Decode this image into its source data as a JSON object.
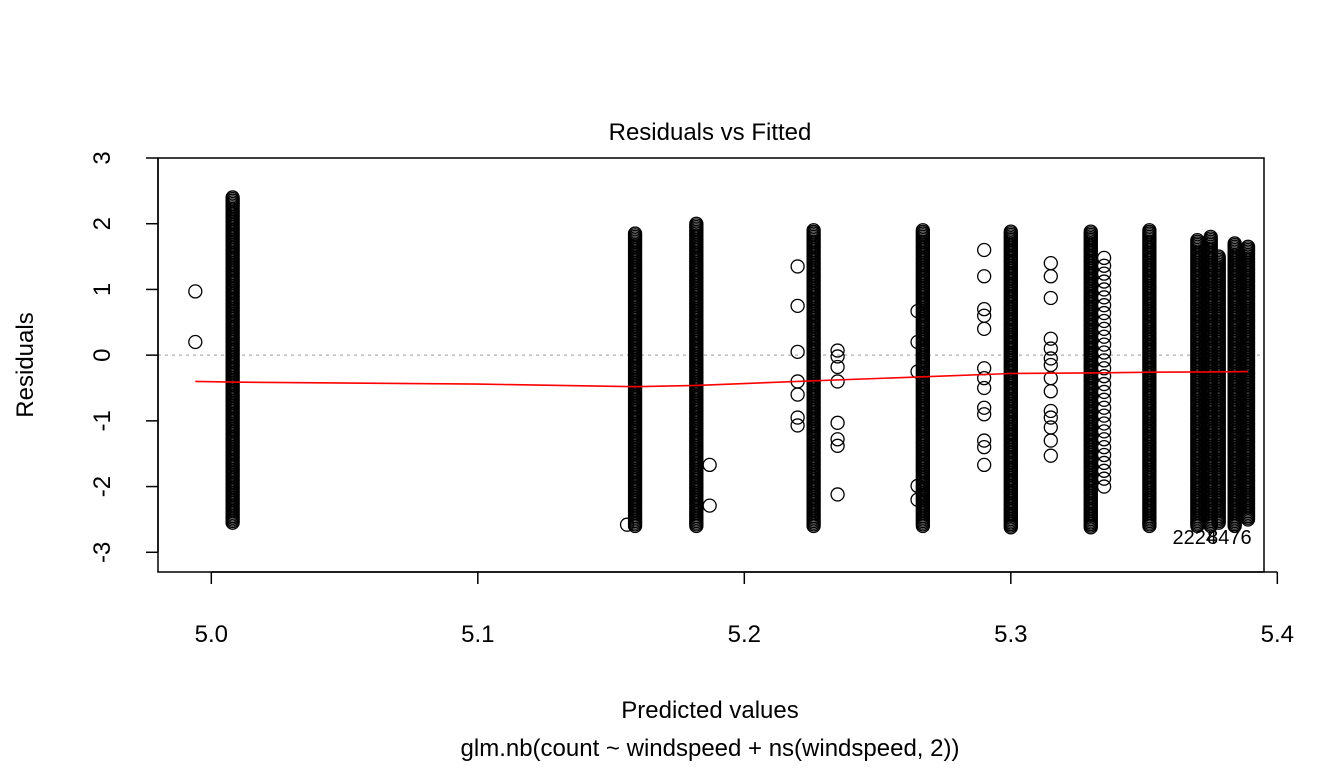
{
  "chart_data": {
    "type": "scatter",
    "title": "Residuals vs Fitted",
    "xlabel": "Predicted values",
    "subtitle": "glm.nb(count ~ windspeed + ns(windspeed, 2))",
    "ylabel": "Residuals",
    "xlim": [
      4.98,
      5.395
    ],
    "ylim": [
      -3.3,
      3.0
    ],
    "xticks": [
      "5.0",
      "5.1",
      "5.2",
      "5.3",
      "5.4"
    ],
    "yticks": [
      "-3",
      "-2",
      "-1",
      "0",
      "1",
      "2",
      "3"
    ],
    "reference_line": {
      "y": 0,
      "style": "dotted",
      "color": "#bbbbbb"
    },
    "point_style": {
      "shape": "open-circle",
      "color": "#000000"
    },
    "columns": [
      {
        "x": 5.008,
        "ymin": -2.55,
        "ymax": 2.4,
        "dense": true
      },
      {
        "x": 5.159,
        "ymin": -2.6,
        "ymax": 1.85,
        "dense": true
      },
      {
        "x": 5.182,
        "ymin": -2.6,
        "ymax": 2.0,
        "dense": true
      },
      {
        "x": 5.226,
        "ymin": -2.6,
        "ymax": 1.9,
        "dense": true
      },
      {
        "x": 5.267,
        "ymin": -2.6,
        "ymax": 1.9,
        "dense": true
      },
      {
        "x": 5.3,
        "ymin": -2.62,
        "ymax": 1.9,
        "dense": true
      },
      {
        "x": 5.33,
        "ymin": -2.62,
        "ymax": 1.9,
        "dense": true
      },
      {
        "x": 5.335,
        "ymin": -2.0,
        "ymax": 1.5,
        "dense": false
      },
      {
        "x": 5.352,
        "ymin": -2.6,
        "ymax": 1.9,
        "dense": true
      },
      {
        "x": 5.37,
        "ymin": -2.6,
        "ymax": 1.75,
        "dense": true
      },
      {
        "x": 5.375,
        "ymin": -2.6,
        "ymax": 1.8,
        "dense": true
      },
      {
        "x": 5.378,
        "ymin": -2.55,
        "ymax": 1.5,
        "dense": true
      },
      {
        "x": 5.384,
        "ymin": -2.6,
        "ymax": 1.7,
        "dense": true
      },
      {
        "x": 5.389,
        "ymin": -2.5,
        "ymax": 1.65,
        "dense": true
      }
    ],
    "scatter_points": [
      [
        4.994,
        0.97
      ],
      [
        4.994,
        0.2
      ],
      [
        5.156,
        -2.58
      ],
      [
        5.187,
        -1.67
      ],
      [
        5.187,
        -2.29
      ],
      [
        5.22,
        1.35
      ],
      [
        5.22,
        0.75
      ],
      [
        5.22,
        0.05
      ],
      [
        5.22,
        -0.4
      ],
      [
        5.22,
        -0.6
      ],
      [
        5.22,
        -0.95
      ],
      [
        5.22,
        -1.07
      ],
      [
        5.235,
        0.07
      ],
      [
        5.235,
        -0.02
      ],
      [
        5.235,
        -0.18
      ],
      [
        5.235,
        -0.4
      ],
      [
        5.235,
        -1.03
      ],
      [
        5.235,
        -1.28
      ],
      [
        5.235,
        -1.38
      ],
      [
        5.235,
        -2.12
      ],
      [
        5.265,
        0.67
      ],
      [
        5.265,
        0.2
      ],
      [
        5.265,
        -0.25
      ],
      [
        5.265,
        -1.99
      ],
      [
        5.265,
        -2.2
      ],
      [
        5.29,
        1.6
      ],
      [
        5.29,
        1.2
      ],
      [
        5.29,
        0.7
      ],
      [
        5.29,
        0.6
      ],
      [
        5.29,
        0.4
      ],
      [
        5.29,
        -0.2
      ],
      [
        5.29,
        -0.35
      ],
      [
        5.29,
        -0.5
      ],
      [
        5.29,
        -0.8
      ],
      [
        5.29,
        -0.9
      ],
      [
        5.29,
        -1.3
      ],
      [
        5.29,
        -1.4
      ],
      [
        5.29,
        -1.67
      ],
      [
        5.315,
        1.4
      ],
      [
        5.315,
        1.2
      ],
      [
        5.315,
        0.87
      ],
      [
        5.315,
        0.25
      ],
      [
        5.315,
        0.1
      ],
      [
        5.315,
        -0.05
      ],
      [
        5.315,
        -0.15
      ],
      [
        5.315,
        -0.35
      ],
      [
        5.315,
        -0.55
      ],
      [
        5.315,
        -0.85
      ],
      [
        5.315,
        -0.95
      ],
      [
        5.315,
        -1.1
      ],
      [
        5.315,
        -1.3
      ],
      [
        5.315,
        -1.53
      ]
    ],
    "line": {
      "color": "#ff0000",
      "x": [
        4.994,
        5.008,
        5.1,
        5.159,
        5.182,
        5.226,
        5.267,
        5.3,
        5.33,
        5.352,
        5.375,
        5.389
      ],
      "y": [
        -0.4,
        -0.41,
        -0.44,
        -0.48,
        -0.46,
        -0.39,
        -0.33,
        -0.28,
        -0.27,
        -0.26,
        -0.255,
        -0.25
      ]
    },
    "annotations": [
      {
        "text": "2224",
        "x": 5.369,
        "y": -2.75
      },
      {
        "text": "8476",
        "x": 5.382,
        "y": -2.75
      }
    ]
  }
}
